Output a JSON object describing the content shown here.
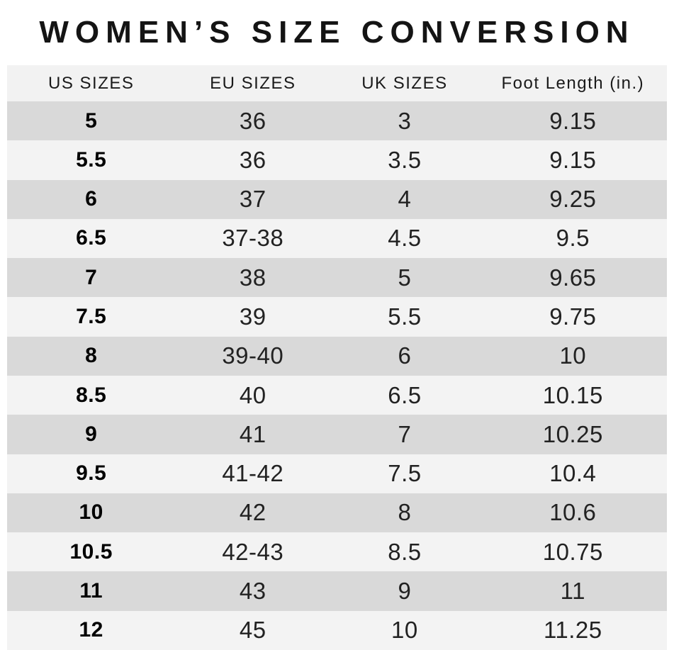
{
  "chart_data": {
    "type": "table",
    "title": "WOMEN’S SIZE CONVERSION",
    "columns": [
      "US SIZES",
      "EU SIZES",
      "UK SIZES",
      "Foot Length (in.)"
    ],
    "rows": [
      [
        "5",
        "36",
        "3",
        "9.15"
      ],
      [
        "5.5",
        "36",
        "3.5",
        "9.15"
      ],
      [
        "6",
        "37",
        "4",
        "9.25"
      ],
      [
        "6.5",
        "37-38",
        "4.5",
        "9.5"
      ],
      [
        "7",
        "38",
        "5",
        "9.65"
      ],
      [
        "7.5",
        "39",
        "5.5",
        "9.75"
      ],
      [
        "8",
        "39-40",
        "6",
        "10"
      ],
      [
        "8.5",
        "40",
        "6.5",
        "10.15"
      ],
      [
        "9",
        "41",
        "7",
        "10.25"
      ],
      [
        "9.5",
        "41-42",
        "7.5",
        "10.4"
      ],
      [
        "10",
        "42",
        "8",
        "10.6"
      ],
      [
        "10.5",
        "42-43",
        "8.5",
        "10.75"
      ],
      [
        "11",
        "43",
        "9",
        "11"
      ],
      [
        "12",
        "45",
        "10",
        "11.25"
      ]
    ]
  },
  "colors": {
    "row_stripe_dark": "#d9d9d9",
    "row_stripe_light": "#f3f3f3",
    "header_background": "#f2f2f2",
    "text": "#1a1a1a",
    "title_text": "#141414"
  }
}
